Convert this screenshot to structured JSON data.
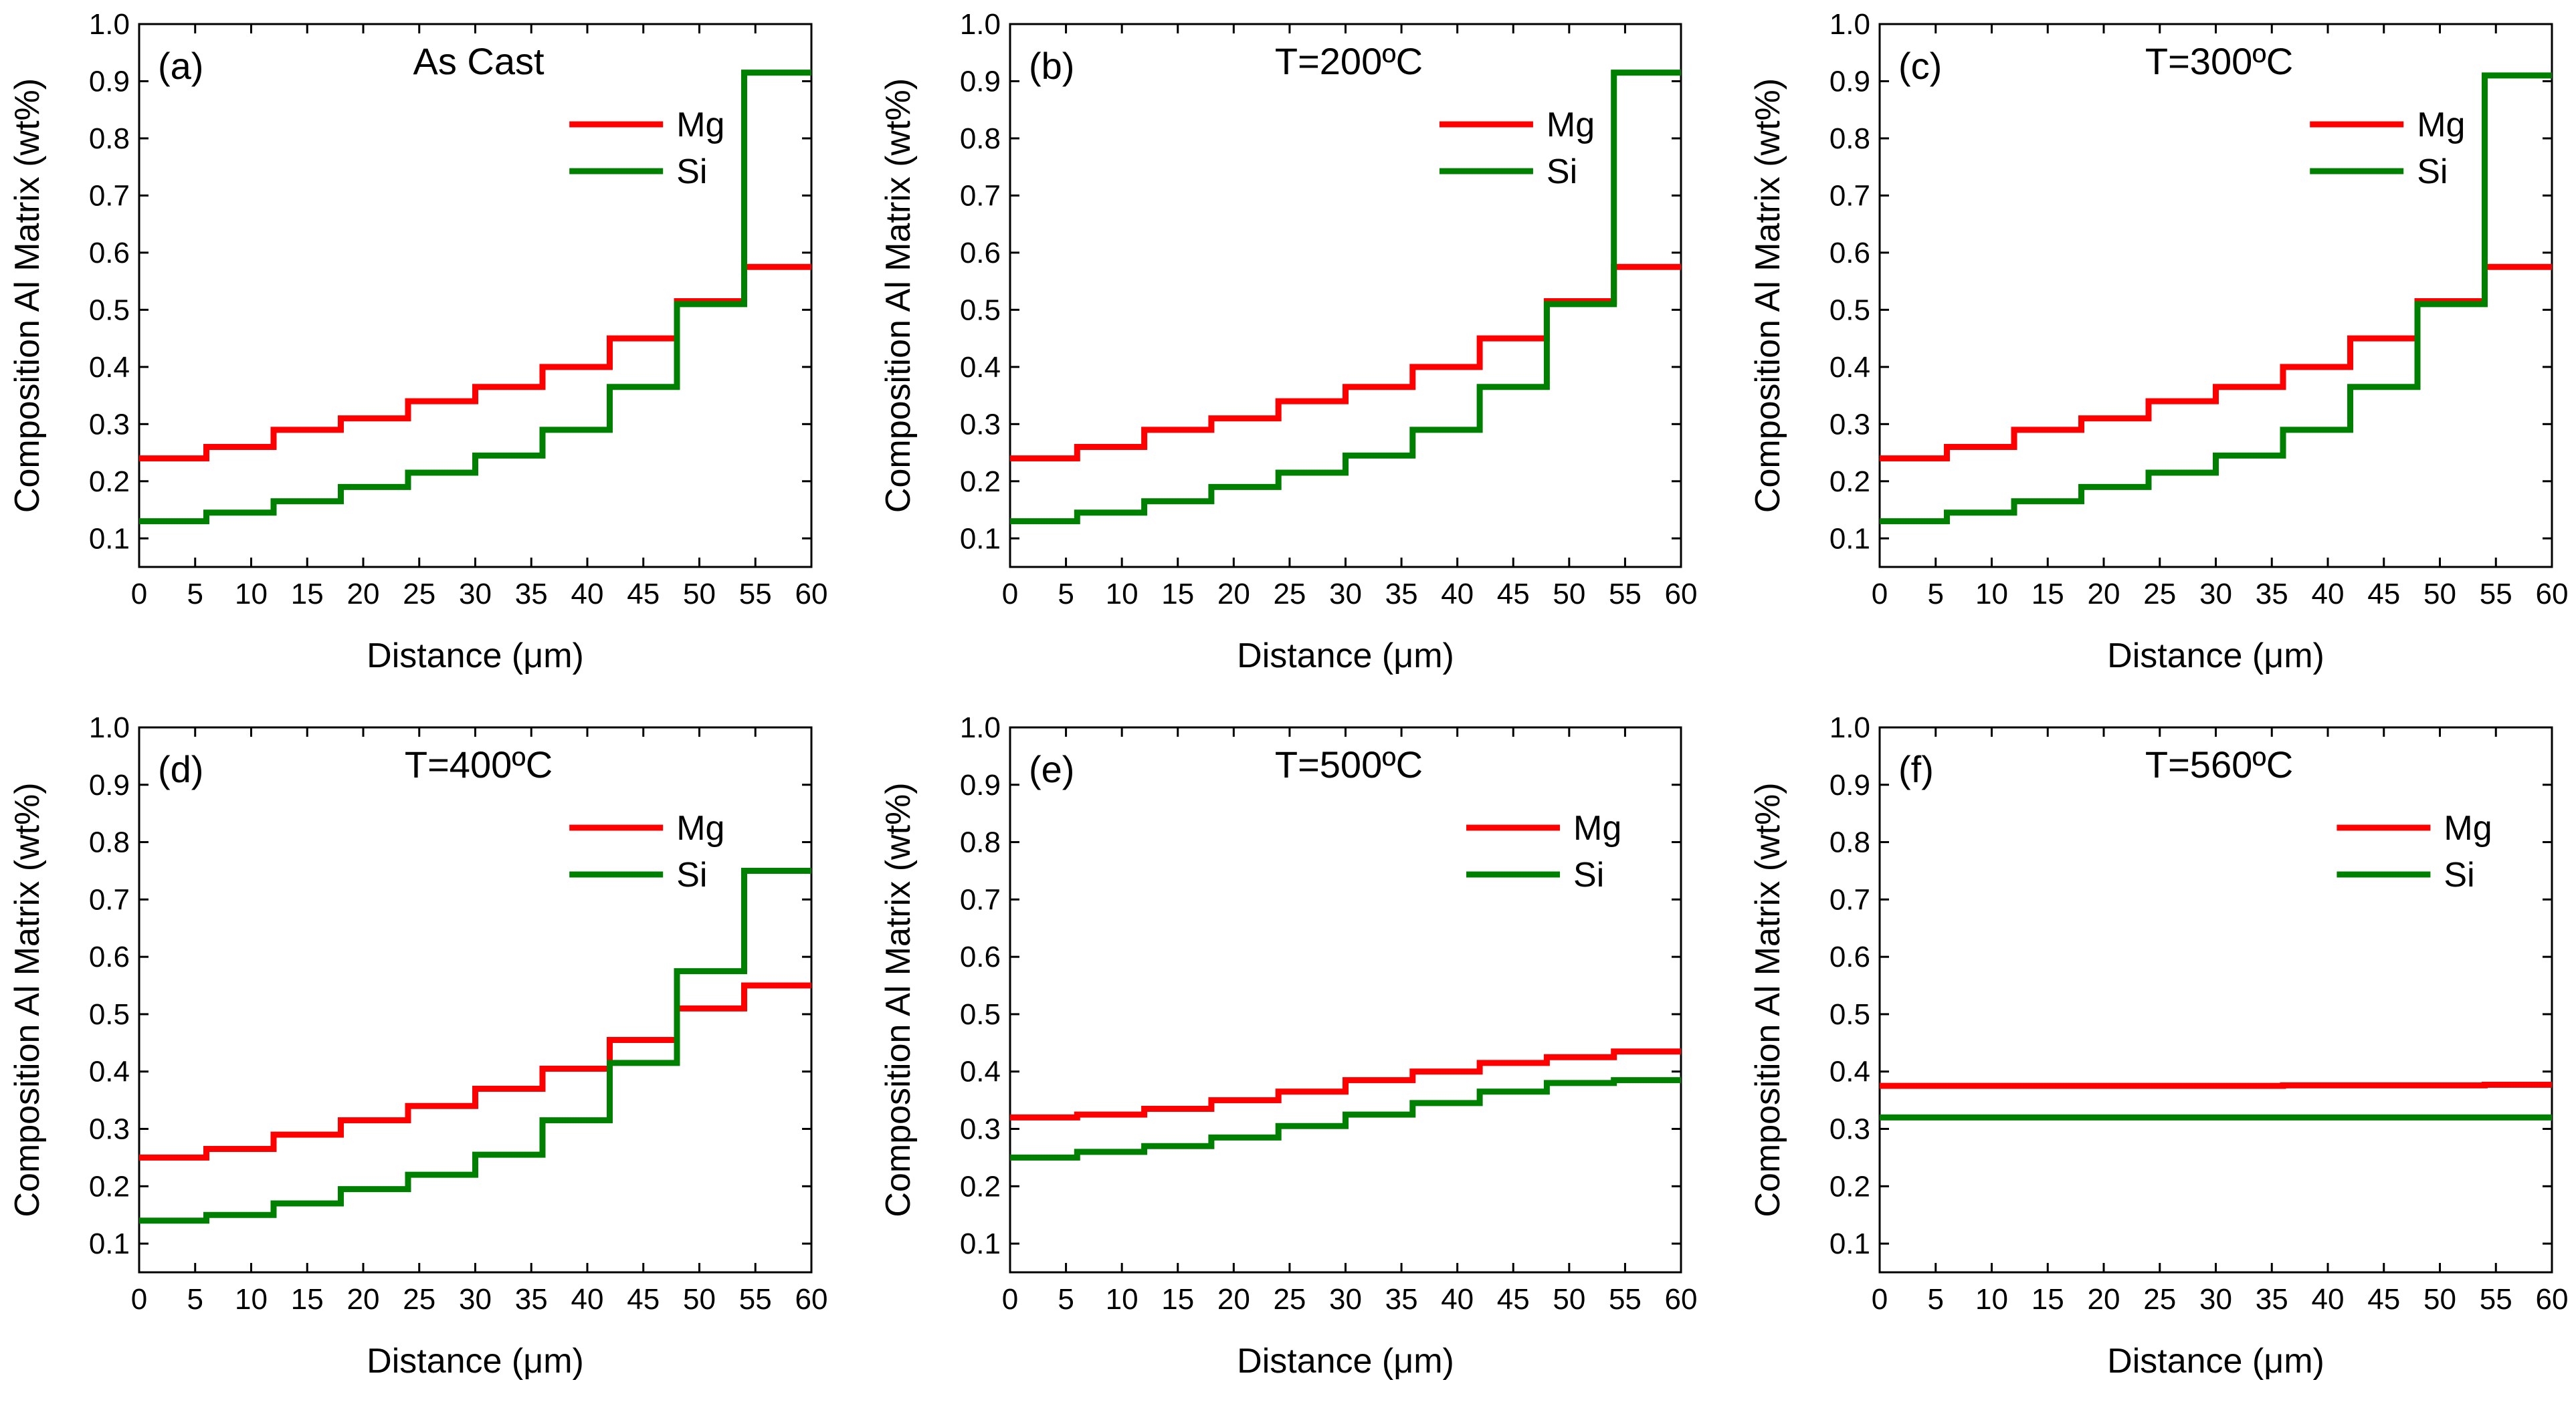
{
  "figure": {
    "colors": {
      "Mg": "#ff0000",
      "Si": "#008000",
      "axis": "#000000"
    }
  },
  "chart_data": [
    {
      "type": "line",
      "panel_label": "(a)",
      "title": "As Cast",
      "xlabel": "Distance (μm)",
      "ylabel": "Composition Al Matrix (wt%)",
      "xlim": [
        0,
        60
      ],
      "ylim": [
        0.05,
        1.0
      ],
      "xticks": [
        0,
        5,
        10,
        15,
        20,
        25,
        30,
        35,
        40,
        45,
        50,
        55,
        60
      ],
      "yticks": [
        0.1,
        0.2,
        0.3,
        0.4,
        0.5,
        0.6,
        0.7,
        0.8,
        0.9,
        1.0
      ],
      "legend": "upper-right",
      "step": "post",
      "x": [
        0,
        6,
        12,
        18,
        24,
        30,
        36,
        42,
        48,
        54,
        60
      ],
      "series": [
        {
          "name": "Mg",
          "color": "#ff0000",
          "values": [
            0.24,
            0.26,
            0.29,
            0.31,
            0.34,
            0.365,
            0.4,
            0.45,
            0.515,
            0.575,
            0.575
          ]
        },
        {
          "name": "Si",
          "color": "#008000",
          "values": [
            0.13,
            0.145,
            0.165,
            0.19,
            0.215,
            0.245,
            0.29,
            0.365,
            0.51,
            0.915,
            0.915
          ]
        }
      ]
    },
    {
      "type": "line",
      "panel_label": "(b)",
      "title": "T=200ºC",
      "xlabel": "Distance (μm)",
      "ylabel": "Composition Al Matrix (wt%)",
      "xlim": [
        0,
        60
      ],
      "ylim": [
        0.05,
        1.0
      ],
      "xticks": [
        0,
        5,
        10,
        15,
        20,
        25,
        30,
        35,
        40,
        45,
        50,
        55,
        60
      ],
      "yticks": [
        0.1,
        0.2,
        0.3,
        0.4,
        0.5,
        0.6,
        0.7,
        0.8,
        0.9,
        1.0
      ],
      "legend": "upper-right",
      "step": "post",
      "x": [
        0,
        6,
        12,
        18,
        24,
        30,
        36,
        42,
        48,
        54,
        60
      ],
      "series": [
        {
          "name": "Mg",
          "color": "#ff0000",
          "values": [
            0.24,
            0.26,
            0.29,
            0.31,
            0.34,
            0.365,
            0.4,
            0.45,
            0.515,
            0.575,
            0.575
          ]
        },
        {
          "name": "Si",
          "color": "#008000",
          "values": [
            0.13,
            0.145,
            0.165,
            0.19,
            0.215,
            0.245,
            0.29,
            0.365,
            0.51,
            0.915,
            0.915
          ]
        }
      ]
    },
    {
      "type": "line",
      "panel_label": "(c)",
      "title": "T=300ºC",
      "xlabel": "Distance (μm)",
      "ylabel": "Composition Al Matrix (wt%)",
      "xlim": [
        0,
        60
      ],
      "ylim": [
        0.05,
        1.0
      ],
      "xticks": [
        0,
        5,
        10,
        15,
        20,
        25,
        30,
        35,
        40,
        45,
        50,
        55,
        60
      ],
      "yticks": [
        0.1,
        0.2,
        0.3,
        0.4,
        0.5,
        0.6,
        0.7,
        0.8,
        0.9,
        1.0
      ],
      "legend": "upper-right",
      "step": "post",
      "x": [
        0,
        6,
        12,
        18,
        24,
        30,
        36,
        42,
        48,
        54,
        60
      ],
      "series": [
        {
          "name": "Mg",
          "color": "#ff0000",
          "values": [
            0.24,
            0.26,
            0.29,
            0.31,
            0.34,
            0.365,
            0.4,
            0.45,
            0.515,
            0.575,
            0.575
          ]
        },
        {
          "name": "Si",
          "color": "#008000",
          "values": [
            0.13,
            0.145,
            0.165,
            0.19,
            0.215,
            0.245,
            0.29,
            0.365,
            0.51,
            0.91,
            0.91
          ]
        }
      ]
    },
    {
      "type": "line",
      "panel_label": "(d)",
      "title": "T=400ºC",
      "xlabel": "Distance (μm)",
      "ylabel": "Composition Al Matrix (wt%)",
      "xlim": [
        0,
        60
      ],
      "ylim": [
        0.05,
        1.0
      ],
      "xticks": [
        0,
        5,
        10,
        15,
        20,
        25,
        30,
        35,
        40,
        45,
        50,
        55,
        60
      ],
      "yticks": [
        0.1,
        0.2,
        0.3,
        0.4,
        0.5,
        0.6,
        0.7,
        0.8,
        0.9,
        1.0
      ],
      "legend": "upper-right",
      "step": "post",
      "x": [
        0,
        6,
        12,
        18,
        24,
        30,
        36,
        42,
        48,
        54,
        60
      ],
      "series": [
        {
          "name": "Mg",
          "color": "#ff0000",
          "values": [
            0.25,
            0.265,
            0.29,
            0.315,
            0.34,
            0.37,
            0.405,
            0.455,
            0.51,
            0.55,
            0.55
          ]
        },
        {
          "name": "Si",
          "color": "#008000",
          "values": [
            0.14,
            0.15,
            0.17,
            0.195,
            0.22,
            0.255,
            0.315,
            0.415,
            0.575,
            0.75,
            0.75
          ]
        }
      ]
    },
    {
      "type": "line",
      "panel_label": "(e)",
      "title": "T=500ºC",
      "xlabel": "Distance (μm)",
      "ylabel": "Composition Al Matrix (wt%)",
      "xlim": [
        0,
        60
      ],
      "ylim": [
        0.05,
        1.0
      ],
      "xticks": [
        0,
        5,
        10,
        15,
        20,
        25,
        30,
        35,
        40,
        45,
        50,
        55,
        60
      ],
      "yticks": [
        0.1,
        0.2,
        0.3,
        0.4,
        0.5,
        0.6,
        0.7,
        0.8,
        0.9,
        1.0
      ],
      "legend": "upper-right",
      "step": "post",
      "x": [
        0,
        6,
        12,
        18,
        24,
        30,
        36,
        42,
        48,
        54,
        60
      ],
      "series": [
        {
          "name": "Mg",
          "color": "#ff0000",
          "values": [
            0.32,
            0.325,
            0.335,
            0.35,
            0.365,
            0.385,
            0.4,
            0.415,
            0.425,
            0.435,
            0.435
          ]
        },
        {
          "name": "Si",
          "color": "#008000",
          "values": [
            0.25,
            0.26,
            0.27,
            0.285,
            0.305,
            0.325,
            0.345,
            0.365,
            0.38,
            0.385,
            0.385
          ]
        }
      ]
    },
    {
      "type": "line",
      "panel_label": "(f)",
      "title": "T=560ºC",
      "xlabel": "Distance (μm)",
      "ylabel": "Composition Al Matrix (wt%)",
      "xlim": [
        0,
        60
      ],
      "ylim": [
        0.05,
        1.0
      ],
      "xticks": [
        0,
        5,
        10,
        15,
        20,
        25,
        30,
        35,
        40,
        45,
        50,
        55,
        60
      ],
      "yticks": [
        0.1,
        0.2,
        0.3,
        0.4,
        0.5,
        0.6,
        0.7,
        0.8,
        0.9,
        1.0
      ],
      "legend": "upper-right",
      "step": "post",
      "x": [
        0,
        6,
        12,
        18,
        24,
        30,
        36,
        42,
        48,
        54,
        60
      ],
      "series": [
        {
          "name": "Mg",
          "color": "#ff0000",
          "values": [
            0.375,
            0.375,
            0.375,
            0.375,
            0.375,
            0.375,
            0.376,
            0.376,
            0.376,
            0.377,
            0.377
          ]
        },
        {
          "name": "Si",
          "color": "#008000",
          "values": [
            0.32,
            0.32,
            0.32,
            0.32,
            0.32,
            0.32,
            0.32,
            0.32,
            0.32,
            0.32,
            0.32
          ]
        }
      ]
    }
  ]
}
